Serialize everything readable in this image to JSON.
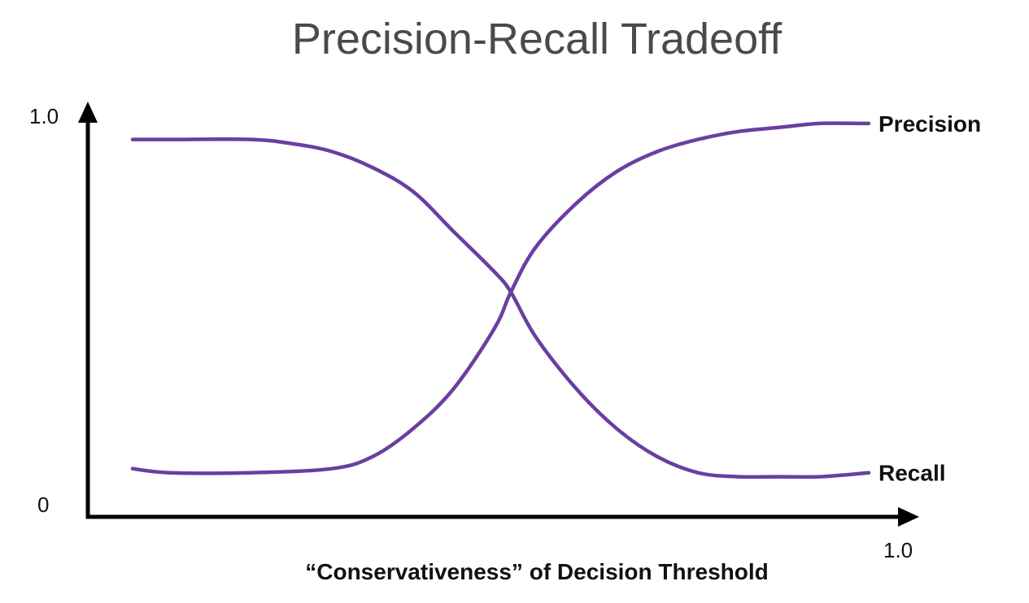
{
  "chart_data": {
    "type": "line",
    "title": "Precision-Recall Tradeoff",
    "xlabel": "“Conservativeness” of Decision Threshold",
    "ylabel": "",
    "xlim": [
      0,
      1.0
    ],
    "ylim": [
      0,
      1.0
    ],
    "x_tick_labels": [
      "1.0"
    ],
    "y_tick_labels": [
      "0",
      "1.0"
    ],
    "grid": false,
    "line_color": "#6a3fa0",
    "series": [
      {
        "name": "Precision",
        "x": [
          0.055,
          0.1,
          0.2,
          0.3,
          0.35,
          0.4,
          0.45,
          0.5,
          0.52,
          0.55,
          0.6,
          0.65,
          0.7,
          0.75,
          0.8,
          0.85,
          0.9,
          0.95,
          0.96
        ],
        "y": [
          0.12,
          0.11,
          0.11,
          0.12,
          0.15,
          0.22,
          0.32,
          0.47,
          0.56,
          0.67,
          0.78,
          0.86,
          0.91,
          0.94,
          0.96,
          0.97,
          0.98,
          0.98,
          0.98
        ]
      },
      {
        "name": "Recall",
        "x": [
          0.055,
          0.1,
          0.2,
          0.25,
          0.3,
          0.35,
          0.4,
          0.45,
          0.5,
          0.52,
          0.55,
          0.6,
          0.65,
          0.7,
          0.75,
          0.8,
          0.85,
          0.9,
          0.96
        ],
        "y": [
          0.94,
          0.94,
          0.94,
          0.93,
          0.91,
          0.87,
          0.81,
          0.71,
          0.61,
          0.56,
          0.45,
          0.32,
          0.22,
          0.15,
          0.11,
          0.1,
          0.1,
          0.1,
          0.11
        ]
      }
    ]
  }
}
